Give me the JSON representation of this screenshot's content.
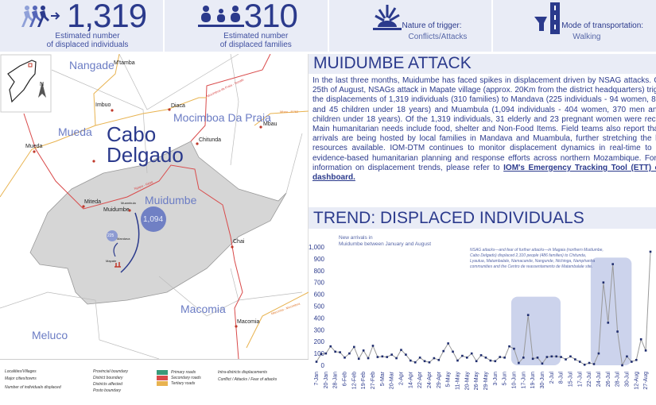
{
  "header": {
    "individuals": {
      "value": "1,319",
      "caption1": "Estimated number",
      "caption2": "of displaced individuals",
      "icon": "walking-people-arrow-icon"
    },
    "families": {
      "value": "310",
      "caption1": "Estimated number",
      "caption2": "of displaced families",
      "icon": "family-icon"
    },
    "trigger": {
      "label": "Nature of trigger:",
      "value": "Conflicts/Attacks",
      "icon": "explosion-icon"
    },
    "transport": {
      "label": "Mode of transportation:",
      "value": "Walking",
      "icon": "road-icon"
    }
  },
  "map": {
    "province": [
      "Cabo",
      "Delgado"
    ],
    "districts": [
      "Nangade",
      "Mocimboa Da Praia",
      "Mueda",
      "Muidumbe",
      "Macomia",
      "Meluco"
    ],
    "towns": [
      "M'tamba",
      "Imbuo",
      "Diaca",
      "Mbau",
      "Chitunda",
      "Mueda",
      "Miteda",
      "Muidumbe",
      "Chai",
      "Macomia"
    ],
    "villages": [
      "Mandava",
      "Mapate",
      "Muambula"
    ],
    "roads": [
      "Mocimboa da Praia - Sunate",
      "Mbau - R762",
      "Ngapa - R698",
      "Macomia - Mocimboa"
    ],
    "bubbles": {
      "muambula": "1,094",
      "mandava": "225"
    },
    "north": "N",
    "legend": [
      "Localities/Villages",
      "Major cities/towns",
      "Number of individuals displaced",
      "Provincial boundary",
      "District boundary",
      "Districts affected",
      "Posto boundary",
      "Primary roads",
      "Secondary roads",
      "Tertiary roads",
      "Intra-districts displacements",
      "Conflict / Attacks / Fear of attacks"
    ],
    "colors": {
      "affected": "#d6d6d6",
      "secondary": "#d94a4a",
      "tertiary": "#e8b350",
      "bubble": "#7080c4"
    }
  },
  "article": {
    "title": "MUIDUMBE ATTACK",
    "body": "In the last three months, Muidumbe has faced spikes in displacement driven by NSAG attacks. On the 25th of August, NSAGs attack in Mapate village (approx. 20Km from the district headquarters)  triggered the displacements of 1,319 individuals (310 families) to Mandava (225 individuals - 94 women, 86 men and 45 children under 18 years) and Muambula (1,094 individuals - 404 women, 370 men and 320 children under 18 years). Of the 1,319 individuals, 31 elderly and 23 pregnant women were recorded. Main humanitarian needs include food, shelter and Non-Food Items. Field teams also report that new arrivals are being hosted by local families in Mandava and Muambula, further stretching the limited resources available. IOM-DTM continues to monitor displacement dynamics in real-time to inform evidence-based humanitarian planning and response efforts across northern Mozambique. For more information on displacement trends, please refer to ",
    "link": "IOM's Emergency Tracking Tool (ETT) online dashboard."
  },
  "trend": {
    "title": "TREND: DISPLACED INDIVIDUALS"
  },
  "chart_data": {
    "type": "line",
    "title": "New arrivals in Muidumbe between January and August",
    "annotation": "NSAG attacks—and fear of further attacks—in Magaia (northern Muidumbe, Cabo Delgado) displaced 2,310 people (486 families) to Chitunda, Lyautua, Matambalale, Namacande, Nangunde, Ntchinga, Namphanha communities and the Centro de reassentamento de Matambalale site.",
    "ylim": [
      0,
      1000
    ],
    "yticks": [
      "0",
      "100",
      "200",
      "300",
      "400",
      "500",
      "600",
      "700",
      "800",
      "900",
      "1,000"
    ],
    "xlabels": [
      "7-Jan",
      "20-Jan",
      "28-Jan",
      "6-Feb",
      "12-Feb",
      "19-Feb",
      "27-Feb",
      "5-Mar",
      "20-Mar",
      "2-Apr",
      "14-Apr",
      "22-Apr",
      "24-Apr",
      "29-Apr",
      "5-May",
      "11-May",
      "20-May",
      "26-May",
      "29-May",
      "3-Jun",
      "5-Jun",
      "10-Jun",
      "17-Jun",
      "19-Jun",
      "30-Jun",
      "2-Jul",
      "8-Jul",
      "15-Jul",
      "17-Jul",
      "22-Jul",
      "24-Jul",
      "26-Jul",
      "28-Jul",
      "30-Jul",
      "12-Aug",
      "27-Aug"
    ],
    "values": [
      30,
      95,
      100,
      160,
      115,
      110,
      65,
      100,
      155,
      55,
      125,
      60,
      165,
      70,
      75,
      70,
      90,
      60,
      130,
      90,
      40,
      25,
      65,
      35,
      25,
      60,
      45,
      120,
      185,
      115,
      40,
      80,
      65,
      100,
      35,
      85,
      65,
      40,
      35,
      70,
      65,
      160,
      140,
      20,
      65,
      425,
      55,
      65,
      15,
      70,
      75,
      75,
      70,
      50,
      75,
      50,
      30,
      5,
      20,
      10,
      100,
      700,
      360,
      855,
      285,
      0,
      75,
      30,
      45,
      220,
      125,
      960
    ],
    "highlight_ranges": [
      [
        41.4,
        51.9,
        580
      ],
      [
        58.3,
        67,
        910
      ]
    ],
    "colors": {
      "line": "#999999",
      "marker": "#1f2d6e",
      "highlight": "#ccd3ec"
    }
  }
}
